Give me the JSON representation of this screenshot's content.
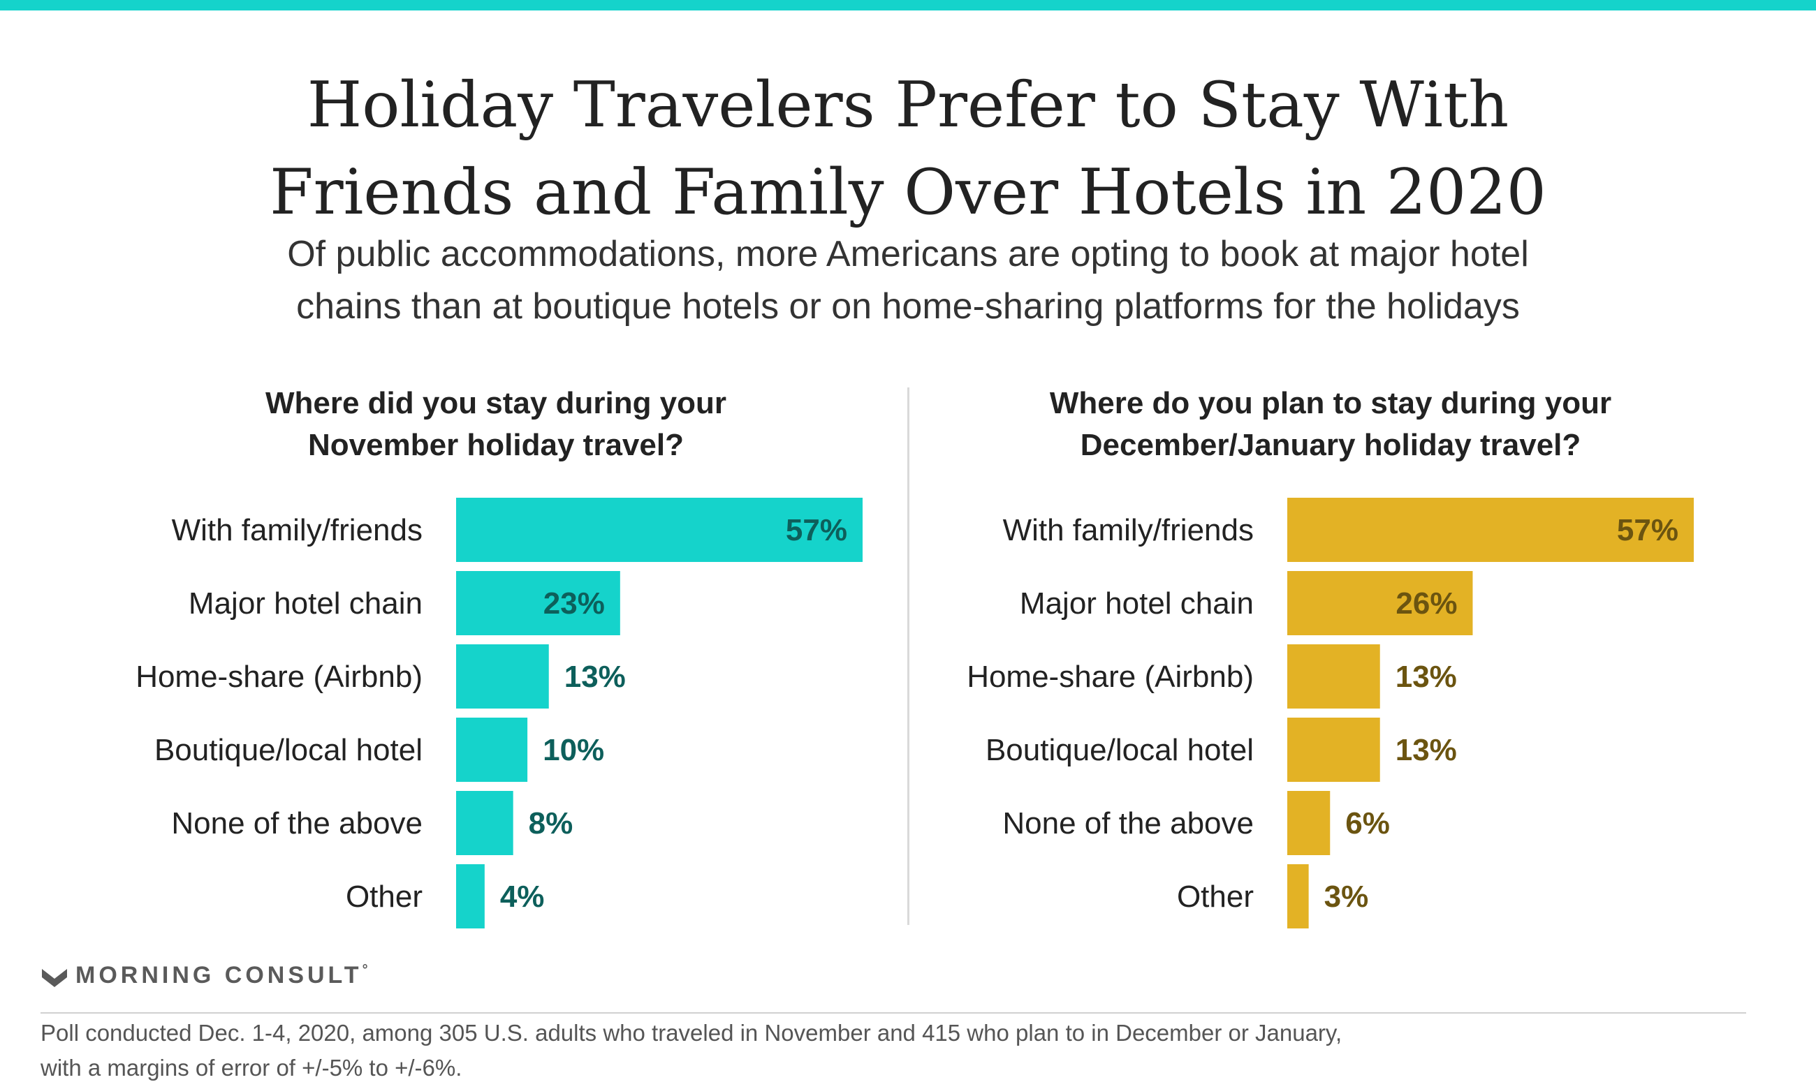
{
  "brand": {
    "accent_color": "#15d3cb",
    "logo_icon": "morning-consult-m-icon",
    "logo_text": "MORNING CONSULT",
    "logo_mark": "°"
  },
  "title_lines": [
    "Holiday Travelers Prefer to Stay With",
    "Friends and Family Over Hotels in 2020"
  ],
  "subtitle_lines": [
    "Of public accommodations, more Americans are opting to book at major hotel",
    "chains than at boutique hotels or on home-sharing platforms for the holidays"
  ],
  "footnote_lines": [
    "Poll conducted Dec. 1-4, 2020, among 305 U.S. adults who traveled in November and 415 who plan to in December or January,",
    "with a margins of error of +/-5% to +/-6%."
  ],
  "chart_data": [
    {
      "type": "bar",
      "orientation": "horizontal",
      "title_lines": [
        "Where did you stay during your",
        "November holiday travel?"
      ],
      "categories": [
        "With family/friends",
        "Major hotel chain",
        "Home-share (Airbnb)",
        "Boutique/local hotel",
        "None of the above",
        "Other"
      ],
      "values": [
        57,
        23,
        13,
        10,
        8,
        4
      ],
      "value_labels": [
        "57%",
        "23%",
        "13%",
        "10%",
        "8%",
        "4%"
      ],
      "bar_color": "#15d3cb",
      "label_color": "#0d5f5b",
      "xlim": [
        0,
        57
      ],
      "grid": false
    },
    {
      "type": "bar",
      "orientation": "horizontal",
      "title_lines": [
        "Where do you plan to stay during your",
        "December/January holiday travel?"
      ],
      "categories": [
        "With family/friends",
        "Major hotel chain",
        "Home-share (Airbnb)",
        "Boutique/local hotel",
        "None of the above",
        "Other"
      ],
      "values": [
        57,
        26,
        13,
        13,
        6,
        3
      ],
      "value_labels": [
        "57%",
        "26%",
        "13%",
        "13%",
        "6%",
        "3%"
      ],
      "bar_color": "#e3b225",
      "label_color": "#6b5410",
      "xlim": [
        0,
        57
      ],
      "grid": false
    }
  ]
}
